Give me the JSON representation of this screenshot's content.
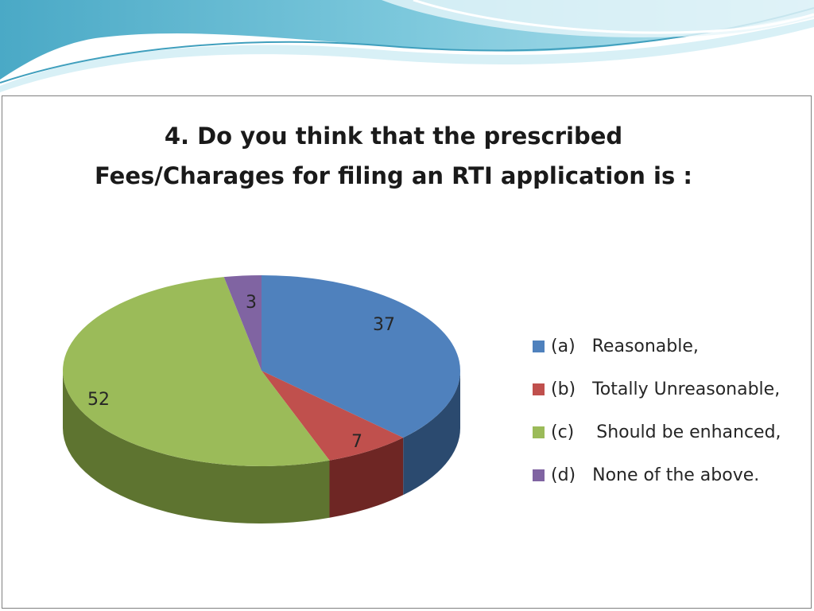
{
  "theme": {
    "wave_colors": [
      "#5bb8cf",
      "#8fd2e0",
      "#c9eaf2",
      "#3f9fbd"
    ],
    "frame_border": "#7f7f7f"
  },
  "chart_data": {
    "type": "pie",
    "style": "3d",
    "title_lines": [
      "4. Do you think that the prescribed",
      "Fees/Charages for filing an  RTI application is :"
    ],
    "title": "4. Do you think that the prescribed Fees/Charages for filing an  RTI application is :",
    "legend_position": "right",
    "slices": [
      {
        "legend": "(a)   Reasonable,",
        "value": 37,
        "label": "37",
        "color": "#4f81bd",
        "side_color": "#2b4a6f"
      },
      {
        "legend": "(b)   Totally Unreasonable,",
        "value": 7,
        "label": "7",
        "color": "#c0504d",
        "side_color": "#6e2624"
      },
      {
        "legend": "(c)    Should be enhanced,",
        "value": 52,
        "label": "52",
        "color": "#9bbb59",
        "side_color": "#5e7430"
      },
      {
        "legend": "(d)   None of the above.",
        "value": 3,
        "label": "3",
        "color": "#8064a2",
        "side_color": "#4b3a61"
      }
    ]
  }
}
